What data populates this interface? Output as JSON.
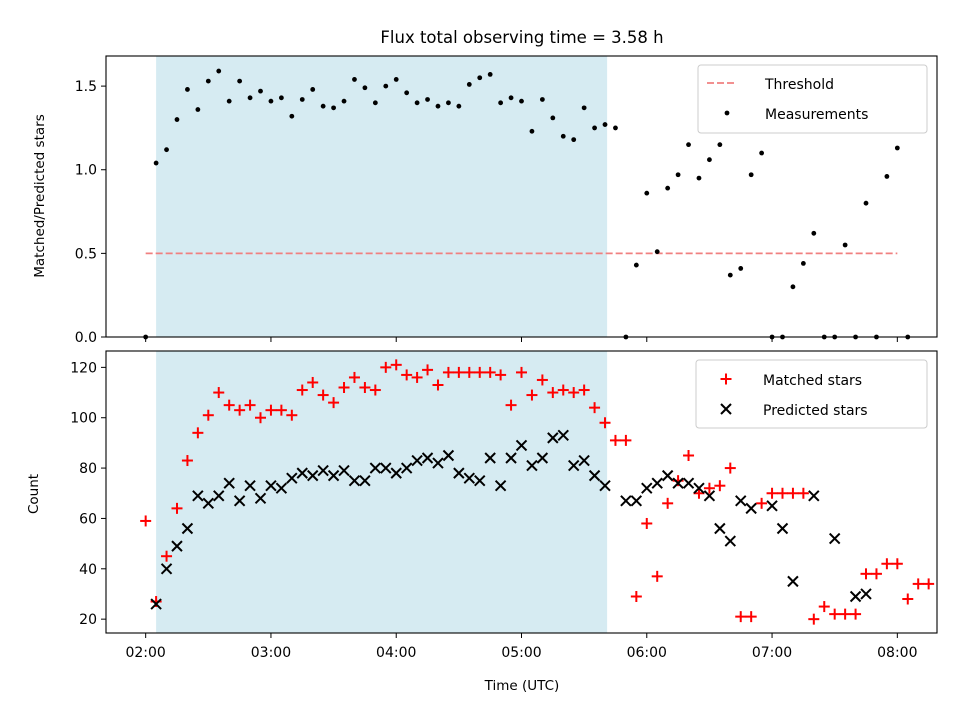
{
  "chart_data": [
    {
      "type": "scatter",
      "title": "Flux total observing time = 3.58 h",
      "xlabel": "",
      "ylabel": "Matched/Predicted stars",
      "xlim": [
        "01:41",
        "08:19"
      ],
      "ylim": [
        0,
        1.68
      ],
      "yticks": [
        "0.0",
        "0.5",
        "1.0",
        "1.5"
      ],
      "shaded_span": [
        "02:05",
        "05:41"
      ],
      "legend_position": "top-right",
      "threshold": {
        "name": "Threshold",
        "value": 0.5,
        "x_range": [
          "02:00",
          "08:00"
        ],
        "color": "#f08080",
        "style": "dashed"
      },
      "series": [
        {
          "name": "Measurements",
          "marker": "dot",
          "color": "#000000",
          "points": [
            [
              "02:00",
              0.0
            ],
            [
              "02:05",
              1.04
            ],
            [
              "02:10",
              1.12
            ],
            [
              "02:15",
              1.3
            ],
            [
              "02:20",
              1.48
            ],
            [
              "02:25",
              1.36
            ],
            [
              "02:30",
              1.53
            ],
            [
              "02:35",
              1.59
            ],
            [
              "02:40",
              1.41
            ],
            [
              "02:45",
              1.53
            ],
            [
              "02:50",
              1.43
            ],
            [
              "02:55",
              1.47
            ],
            [
              "03:00",
              1.41
            ],
            [
              "03:05",
              1.43
            ],
            [
              "03:10",
              1.32
            ],
            [
              "03:15",
              1.42
            ],
            [
              "03:20",
              1.48
            ],
            [
              "03:25",
              1.38
            ],
            [
              "03:30",
              1.37
            ],
            [
              "03:35",
              1.41
            ],
            [
              "03:40",
              1.54
            ],
            [
              "03:45",
              1.49
            ],
            [
              "03:50",
              1.4
            ],
            [
              "03:55",
              1.5
            ],
            [
              "04:00",
              1.54
            ],
            [
              "04:05",
              1.46
            ],
            [
              "04:10",
              1.4
            ],
            [
              "04:15",
              1.42
            ],
            [
              "04:20",
              1.38
            ],
            [
              "04:25",
              1.4
            ],
            [
              "04:30",
              1.38
            ],
            [
              "04:35",
              1.51
            ],
            [
              "04:40",
              1.55
            ],
            [
              "04:45",
              1.57
            ],
            [
              "04:50",
              1.4
            ],
            [
              "04:55",
              1.43
            ],
            [
              "05:00",
              1.41
            ],
            [
              "05:05",
              1.23
            ],
            [
              "05:10",
              1.42
            ],
            [
              "05:15",
              1.31
            ],
            [
              "05:20",
              1.2
            ],
            [
              "05:25",
              1.18
            ],
            [
              "05:30",
              1.37
            ],
            [
              "05:35",
              1.25
            ],
            [
              "05:40",
              1.27
            ],
            [
              "05:45",
              1.25
            ],
            [
              "05:50",
              0.0
            ],
            [
              "05:55",
              0.43
            ],
            [
              "06:00",
              0.86
            ],
            [
              "06:05",
              0.51
            ],
            [
              "06:10",
              0.89
            ],
            [
              "06:15",
              0.97
            ],
            [
              "06:20",
              1.15
            ],
            [
              "06:25",
              0.95
            ],
            [
              "06:30",
              1.06
            ],
            [
              "06:35",
              1.15
            ],
            [
              "06:40",
              0.37
            ],
            [
              "06:45",
              0.41
            ],
            [
              "06:50",
              0.97
            ],
            [
              "06:55",
              1.1
            ],
            [
              "07:00",
              0.0
            ],
            [
              "07:05",
              0.0
            ],
            [
              "07:10",
              0.3
            ],
            [
              "07:15",
              0.44
            ],
            [
              "07:20",
              0.62
            ],
            [
              "07:25",
              0.0
            ],
            [
              "07:30",
              0.0
            ],
            [
              "07:35",
              0.55
            ],
            [
              "07:40",
              0.0
            ],
            [
              "07:45",
              0.8
            ],
            [
              "07:50",
              0.0
            ],
            [
              "07:55",
              0.96
            ],
            [
              "08:00",
              1.13
            ],
            [
              "08:05",
              0.0
            ]
          ]
        }
      ]
    },
    {
      "type": "scatter",
      "title": "",
      "xlabel": "Time (UTC)",
      "ylabel": "Count",
      "xlim": [
        "01:41",
        "08:19"
      ],
      "ylim": [
        14.5,
        126.5
      ],
      "yticks": [
        "20",
        "40",
        "60",
        "80",
        "100",
        "120"
      ],
      "xticks": [
        "02:00",
        "03:00",
        "04:00",
        "05:00",
        "06:00",
        "07:00",
        "08:00"
      ],
      "shaded_span": [
        "02:05",
        "05:41"
      ],
      "legend_position": "top-right",
      "series": [
        {
          "name": "Matched stars",
          "marker": "plus",
          "color": "#ff0000",
          "points": [
            [
              "02:00",
              59
            ],
            [
              "02:05",
              27
            ],
            [
              "02:10",
              45
            ],
            [
              "02:15",
              64
            ],
            [
              "02:20",
              83
            ],
            [
              "02:25",
              94
            ],
            [
              "02:30",
              101
            ],
            [
              "02:35",
              110
            ],
            [
              "02:40",
              105
            ],
            [
              "02:45",
              103
            ],
            [
              "02:50",
              105
            ],
            [
              "02:55",
              100
            ],
            [
              "03:00",
              103
            ],
            [
              "03:05",
              103
            ],
            [
              "03:10",
              101
            ],
            [
              "03:15",
              111
            ],
            [
              "03:20",
              114
            ],
            [
              "03:25",
              109
            ],
            [
              "03:30",
              106
            ],
            [
              "03:35",
              112
            ],
            [
              "03:40",
              116
            ],
            [
              "03:45",
              112
            ],
            [
              "03:50",
              111
            ],
            [
              "03:55",
              120
            ],
            [
              "04:00",
              121
            ],
            [
              "04:05",
              117
            ],
            [
              "04:10",
              116
            ],
            [
              "04:15",
              119
            ],
            [
              "04:20",
              113
            ],
            [
              "04:25",
              118
            ],
            [
              "04:30",
              118
            ],
            [
              "04:35",
              118
            ],
            [
              "04:40",
              118
            ],
            [
              "04:45",
              118
            ],
            [
              "04:50",
              117
            ],
            [
              "04:55",
              105
            ],
            [
              "05:00",
              118
            ],
            [
              "05:05",
              109
            ],
            [
              "05:10",
              115
            ],
            [
              "05:15",
              110
            ],
            [
              "05:20",
              111
            ],
            [
              "05:25",
              110
            ],
            [
              "05:30",
              111
            ],
            [
              "05:35",
              104
            ],
            [
              "05:40",
              98
            ],
            [
              "05:45",
              91
            ],
            [
              "05:50",
              91
            ],
            [
              "05:55",
              29
            ],
            [
              "06:00",
              58
            ],
            [
              "06:05",
              37
            ],
            [
              "06:10",
              66
            ],
            [
              "06:15",
              75
            ],
            [
              "06:20",
              85
            ],
            [
              "06:25",
              70
            ],
            [
              "06:30",
              72
            ],
            [
              "06:35",
              73
            ],
            [
              "06:40",
              80
            ],
            [
              "06:45",
              21
            ],
            [
              "06:50",
              21
            ],
            [
              "06:55",
              66
            ],
            [
              "07:00",
              70
            ],
            [
              "07:05",
              70
            ],
            [
              "07:10",
              70
            ],
            [
              "07:15",
              70
            ],
            [
              "07:20",
              20
            ],
            [
              "07:25",
              25
            ],
            [
              "07:30",
              22
            ],
            [
              "07:35",
              22
            ],
            [
              "07:40",
              22
            ],
            [
              "07:45",
              38
            ],
            [
              "07:50",
              38
            ],
            [
              "07:55",
              42
            ],
            [
              "08:00",
              42
            ],
            [
              "08:05",
              28
            ],
            [
              "08:10",
              34
            ],
            [
              "08:15",
              34
            ]
          ]
        },
        {
          "name": "Predicted stars",
          "marker": "x",
          "color": "#000000",
          "points": [
            [
              "02:05",
              26
            ],
            [
              "02:10",
              40
            ],
            [
              "02:15",
              49
            ],
            [
              "02:20",
              56
            ],
            [
              "02:25",
              69
            ],
            [
              "02:30",
              66
            ],
            [
              "02:35",
              69
            ],
            [
              "02:40",
              74
            ],
            [
              "02:45",
              67
            ],
            [
              "02:50",
              73
            ],
            [
              "02:55",
              68
            ],
            [
              "03:00",
              73
            ],
            [
              "03:05",
              72
            ],
            [
              "03:10",
              76
            ],
            [
              "03:15",
              78
            ],
            [
              "03:20",
              77
            ],
            [
              "03:25",
              79
            ],
            [
              "03:30",
              77
            ],
            [
              "03:35",
              79
            ],
            [
              "03:40",
              75
            ],
            [
              "03:45",
              75
            ],
            [
              "03:50",
              80
            ],
            [
              "03:55",
              80
            ],
            [
              "04:00",
              78
            ],
            [
              "04:05",
              80
            ],
            [
              "04:10",
              83
            ],
            [
              "04:15",
              84
            ],
            [
              "04:20",
              82
            ],
            [
              "04:25",
              85
            ],
            [
              "04:30",
              78
            ],
            [
              "04:35",
              76
            ],
            [
              "04:40",
              75
            ],
            [
              "04:45",
              84
            ],
            [
              "04:50",
              73
            ],
            [
              "04:55",
              84
            ],
            [
              "05:00",
              89
            ],
            [
              "05:05",
              81
            ],
            [
              "05:10",
              84
            ],
            [
              "05:15",
              92
            ],
            [
              "05:20",
              93
            ],
            [
              "05:25",
              81
            ],
            [
              "05:30",
              83
            ],
            [
              "05:35",
              77
            ],
            [
              "05:40",
              73
            ],
            [
              "05:50",
              67
            ],
            [
              "05:55",
              67
            ],
            [
              "06:00",
              72
            ],
            [
              "06:05",
              74
            ],
            [
              "06:10",
              77
            ],
            [
              "06:15",
              74
            ],
            [
              "06:20",
              74
            ],
            [
              "06:25",
              72
            ],
            [
              "06:30",
              69
            ],
            [
              "06:35",
              56
            ],
            [
              "06:40",
              51
            ],
            [
              "06:45",
              67
            ],
            [
              "06:50",
              64
            ],
            [
              "07:00",
              65
            ],
            [
              "07:05",
              56
            ],
            [
              "07:10",
              35
            ],
            [
              "07:20",
              69
            ],
            [
              "07:30",
              52
            ],
            [
              "07:40",
              29
            ],
            [
              "07:45",
              30
            ]
          ]
        }
      ]
    }
  ]
}
